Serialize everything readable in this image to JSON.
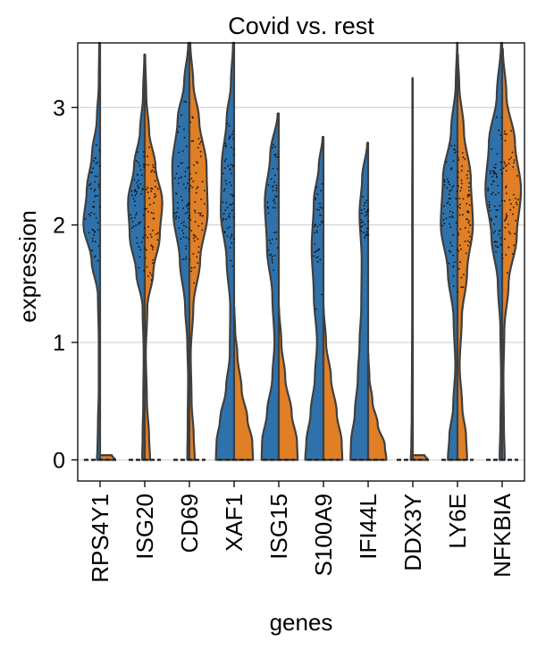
{
  "chart_data": {
    "type": "violin",
    "title": "Covid vs. rest",
    "xlabel": "genes",
    "ylabel": "expression",
    "ylim": [
      -0.18,
      3.55
    ],
    "yticks": [
      0,
      1,
      2,
      3
    ],
    "grid": "horizontal",
    "split": true,
    "series": [
      {
        "name": "Covid",
        "color": "#2f72ab"
      },
      {
        "name": "rest",
        "color": "#e07f26"
      }
    ],
    "categories": [
      "RPS4Y1",
      "ISG20",
      "CD69",
      "XAF1",
      "ISG15",
      "S100A9",
      "IFI44L",
      "DDX3Y",
      "LY6E",
      "NFKBIA"
    ],
    "violins": [
      {
        "gene": "RPS4Y1",
        "left": {
          "ymin": 0,
          "ymax": 3.55,
          "points": [
            [
              0,
              0.15
            ],
            [
              0.1,
              0.12
            ],
            [
              0.3,
              0.1
            ],
            [
              0.6,
              0.06
            ],
            [
              1.0,
              0.06
            ],
            [
              1.4,
              0.1
            ],
            [
              1.7,
              0.4
            ],
            [
              2.0,
              0.78
            ],
            [
              2.3,
              0.62
            ],
            [
              2.6,
              0.38
            ],
            [
              2.9,
              0.15
            ],
            [
              3.2,
              0.06
            ],
            [
              3.55,
              0.04
            ]
          ]
        },
        "right": {
          "ymin": 0,
          "ymax": 0.04,
          "points": [
            [
              0,
              0.7
            ],
            [
              0.04,
              0.55
            ]
          ]
        }
      },
      {
        "gene": "ISG20",
        "left": {
          "ymin": 0,
          "ymax": 3.45,
          "points": [
            [
              0,
              0.12
            ],
            [
              0.2,
              0.1
            ],
            [
              0.5,
              0.07
            ],
            [
              0.9,
              0.05
            ],
            [
              1.3,
              0.1
            ],
            [
              1.6,
              0.4
            ],
            [
              1.9,
              0.7
            ],
            [
              2.2,
              0.78
            ],
            [
              2.5,
              0.5
            ],
            [
              2.8,
              0.22
            ],
            [
              3.1,
              0.08
            ],
            [
              3.45,
              0.02
            ]
          ]
        },
        "right": {
          "ymin": 0,
          "ymax": 3.45,
          "points": [
            [
              0,
              0.25
            ],
            [
              0.2,
              0.2
            ],
            [
              0.5,
              0.1
            ],
            [
              0.9,
              0.05
            ],
            [
              1.3,
              0.12
            ],
            [
              1.6,
              0.4
            ],
            [
              1.9,
              0.7
            ],
            [
              2.2,
              0.82
            ],
            [
              2.5,
              0.5
            ],
            [
              2.8,
              0.2
            ],
            [
              3.1,
              0.07
            ],
            [
              3.45,
              0.02
            ]
          ]
        }
      },
      {
        "gene": "CD69",
        "left": {
          "ymin": 0,
          "ymax": 3.55,
          "points": [
            [
              0,
              0.1
            ],
            [
              0.3,
              0.08
            ],
            [
              0.7,
              0.06
            ],
            [
              1.0,
              0.1
            ],
            [
              1.3,
              0.2
            ],
            [
              1.7,
              0.45
            ],
            [
              2.1,
              0.75
            ],
            [
              2.5,
              0.8
            ],
            [
              2.9,
              0.55
            ],
            [
              3.2,
              0.25
            ],
            [
              3.55,
              0.05
            ]
          ]
        },
        "right": {
          "ymin": 0,
          "ymax": 3.55,
          "points": [
            [
              0,
              0.25
            ],
            [
              0.2,
              0.2
            ],
            [
              0.5,
              0.1
            ],
            [
              0.9,
              0.06
            ],
            [
              1.3,
              0.18
            ],
            [
              1.7,
              0.5
            ],
            [
              2.1,
              0.85
            ],
            [
              2.5,
              0.8
            ],
            [
              2.9,
              0.45
            ],
            [
              3.2,
              0.18
            ],
            [
              3.55,
              0.04
            ]
          ]
        }
      },
      {
        "gene": "XAF1",
        "left": {
          "ymin": 0,
          "ymax": 3.55,
          "points": [
            [
              0,
              0.85
            ],
            [
              0.15,
              0.82
            ],
            [
              0.35,
              0.65
            ],
            [
              0.6,
              0.38
            ],
            [
              0.9,
              0.2
            ],
            [
              1.3,
              0.18
            ],
            [
              1.7,
              0.35
            ],
            [
              2.1,
              0.62
            ],
            [
              2.5,
              0.58
            ],
            [
              2.9,
              0.35
            ],
            [
              3.2,
              0.15
            ],
            [
              3.55,
              0.05
            ]
          ]
        },
        "right": {
          "ymin": 0,
          "ymax": 1.3,
          "points": [
            [
              0,
              0.88
            ],
            [
              0.15,
              0.85
            ],
            [
              0.35,
              0.62
            ],
            [
              0.6,
              0.35
            ],
            [
              0.9,
              0.15
            ],
            [
              1.1,
              0.05
            ],
            [
              1.3,
              0.01
            ]
          ]
        }
      },
      {
        "gene": "ISG15",
        "left": {
          "ymin": 0,
          "ymax": 2.95,
          "points": [
            [
              0,
              0.8
            ],
            [
              0.15,
              0.78
            ],
            [
              0.4,
              0.55
            ],
            [
              0.7,
              0.3
            ],
            [
              1.0,
              0.2
            ],
            [
              1.4,
              0.3
            ],
            [
              1.8,
              0.55
            ],
            [
              2.2,
              0.65
            ],
            [
              2.6,
              0.4
            ],
            [
              2.95,
              0.05
            ]
          ]
        },
        "right": {
          "ymin": 0,
          "ymax": 1.3,
          "points": [
            [
              0,
              0.88
            ],
            [
              0.15,
              0.85
            ],
            [
              0.4,
              0.6
            ],
            [
              0.7,
              0.3
            ],
            [
              1.0,
              0.12
            ],
            [
              1.3,
              0.01
            ]
          ]
        }
      },
      {
        "gene": "S100A9",
        "left": {
          "ymin": 0,
          "ymax": 2.75,
          "points": [
            [
              0,
              0.85
            ],
            [
              0.15,
              0.8
            ],
            [
              0.4,
              0.6
            ],
            [
              0.7,
              0.4
            ],
            [
              1.0,
              0.3
            ],
            [
              1.4,
              0.45
            ],
            [
              1.8,
              0.55
            ],
            [
              2.2,
              0.45
            ],
            [
              2.5,
              0.22
            ],
            [
              2.75,
              0.04
            ]
          ]
        },
        "right": {
          "ymin": 0,
          "ymax": 1.3,
          "points": [
            [
              0,
              0.88
            ],
            [
              0.15,
              0.85
            ],
            [
              0.4,
              0.62
            ],
            [
              0.7,
              0.35
            ],
            [
              1.0,
              0.12
            ],
            [
              1.3,
              0.01
            ]
          ]
        }
      },
      {
        "gene": "IFI44L",
        "left": {
          "ymin": 0,
          "ymax": 2.7,
          "points": [
            [
              0,
              0.82
            ],
            [
              0.15,
              0.8
            ],
            [
              0.4,
              0.62
            ],
            [
              0.7,
              0.48
            ],
            [
              1.0,
              0.4
            ],
            [
              1.3,
              0.32
            ],
            [
              1.7,
              0.3
            ],
            [
              2.1,
              0.4
            ],
            [
              2.4,
              0.28
            ],
            [
              2.7,
              0.04
            ]
          ]
        },
        "right": {
          "ymin": 0,
          "ymax": 0.9,
          "points": [
            [
              0,
              0.85
            ],
            [
              0.12,
              0.78
            ],
            [
              0.3,
              0.45
            ],
            [
              0.5,
              0.2
            ],
            [
              0.7,
              0.06
            ],
            [
              0.9,
              0.01
            ]
          ]
        }
      },
      {
        "gene": "DDX3Y",
        "left": {
          "ymin": 0,
          "ymax": 3.25,
          "points": [
            [
              0,
              0.1
            ],
            [
              0.1,
              0.07
            ],
            [
              0.4,
              0.05
            ],
            [
              0.8,
              0.04
            ],
            [
              1.2,
              0.03
            ],
            [
              1.7,
              0.03
            ],
            [
              2.2,
              0.03
            ],
            [
              2.7,
              0.02
            ],
            [
              3.25,
              0.02
            ]
          ]
        },
        "right": {
          "ymin": 0,
          "ymax": 0.04,
          "points": [
            [
              0,
              0.7
            ],
            [
              0.04,
              0.55
            ]
          ]
        }
      },
      {
        "gene": "LY6E",
        "left": {
          "ymin": 0,
          "ymax": 3.55,
          "points": [
            [
              0,
              0.45
            ],
            [
              0.2,
              0.38
            ],
            [
              0.45,
              0.2
            ],
            [
              0.8,
              0.1
            ],
            [
              1.2,
              0.18
            ],
            [
              1.6,
              0.45
            ],
            [
              2.0,
              0.78
            ],
            [
              2.4,
              0.68
            ],
            [
              2.8,
              0.3
            ],
            [
              3.2,
              0.08
            ],
            [
              3.55,
              0.02
            ]
          ]
        },
        "right": {
          "ymin": 0,
          "ymax": 3.45,
          "points": [
            [
              0,
              0.45
            ],
            [
              0.2,
              0.4
            ],
            [
              0.45,
              0.22
            ],
            [
              0.8,
              0.1
            ],
            [
              1.2,
              0.2
            ],
            [
              1.6,
              0.45
            ],
            [
              2.0,
              0.72
            ],
            [
              2.4,
              0.62
            ],
            [
              2.8,
              0.3
            ],
            [
              3.2,
              0.08
            ],
            [
              3.45,
              0.02
            ]
          ]
        }
      },
      {
        "gene": "NFKBIA",
        "left": {
          "ymin": 0,
          "ymax": 3.55,
          "points": [
            [
              0,
              0.12
            ],
            [
              0.3,
              0.08
            ],
            [
              0.7,
              0.05
            ],
            [
              1.1,
              0.08
            ],
            [
              1.5,
              0.2
            ],
            [
              1.9,
              0.5
            ],
            [
              2.3,
              0.78
            ],
            [
              2.7,
              0.62
            ],
            [
              3.1,
              0.25
            ],
            [
              3.55,
              0.05
            ]
          ]
        },
        "right": {
          "ymin": 0,
          "ymax": 3.5,
          "points": [
            [
              0,
              0.12
            ],
            [
              0.3,
              0.08
            ],
            [
              0.7,
              0.06
            ],
            [
              1.1,
              0.1
            ],
            [
              1.5,
              0.3
            ],
            [
              1.9,
              0.68
            ],
            [
              2.3,
              0.88
            ],
            [
              2.7,
              0.6
            ],
            [
              3.1,
              0.2
            ],
            [
              3.5,
              0.03
            ]
          ]
        }
      }
    ]
  }
}
